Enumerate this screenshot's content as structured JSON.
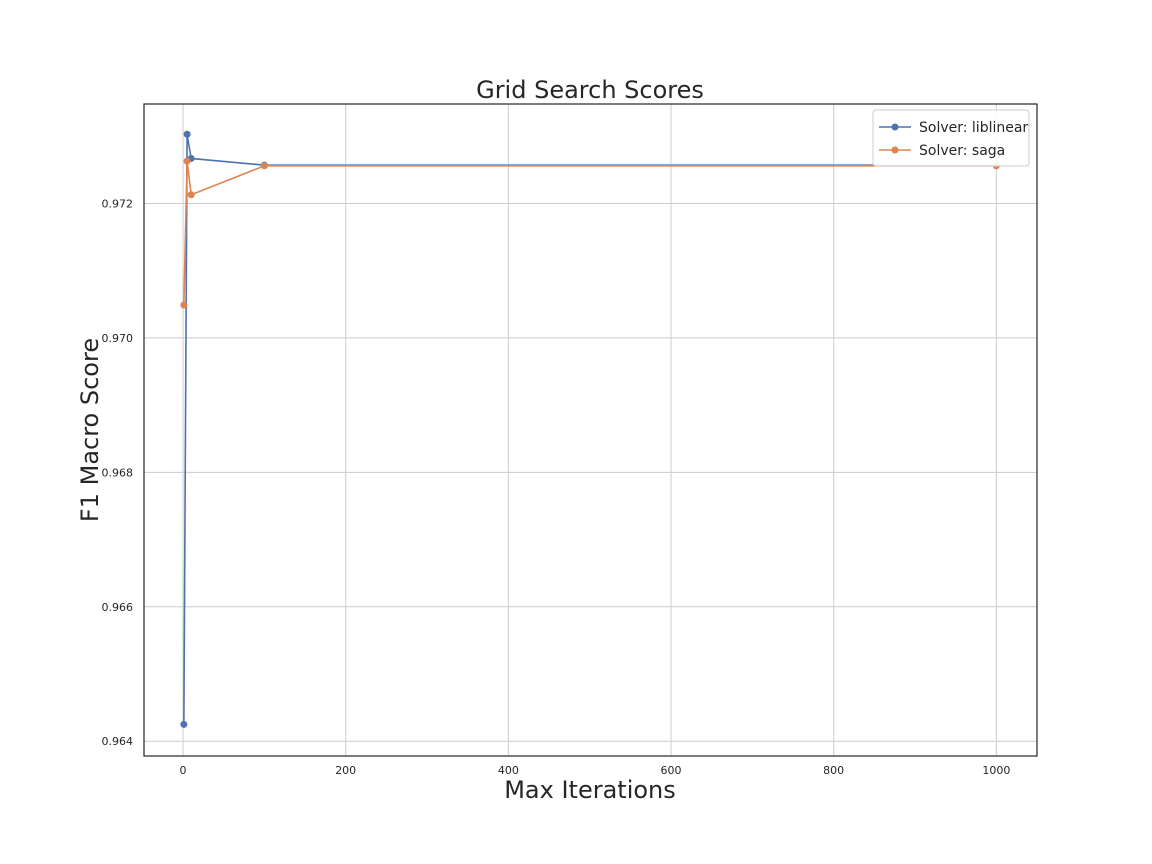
{
  "chart_data": {
    "type": "line",
    "title": "Grid Search Scores",
    "xlabel": "Max Iterations",
    "ylabel": "F1 Macro Score",
    "xlim": [
      -48,
      1050
    ],
    "ylim": [
      0.96378,
      0.97348
    ],
    "xticks": [
      0,
      200,
      400,
      600,
      800,
      1000
    ],
    "yticks": [
      0.964,
      0.966,
      0.968,
      0.97,
      0.972
    ],
    "ytick_labels": [
      "0.964",
      "0.966",
      "0.968",
      "0.970",
      "0.972"
    ],
    "grid": true,
    "legend_position": "top-right",
    "series": [
      {
        "name": "Solver: liblinear",
        "color": "#4c72b0",
        "points": [
          [
            1,
            0.96425
          ],
          [
            5,
            0.97303
          ],
          [
            10,
            0.97267
          ],
          [
            100,
            0.97257
          ],
          [
            1000,
            0.97257
          ]
        ]
      },
      {
        "name": "Solver: saga",
        "color": "#dd8452",
        "points": [
          [
            1,
            0.97049
          ],
          [
            5,
            0.97263
          ],
          [
            10,
            0.97213
          ],
          [
            100,
            0.97256
          ],
          [
            1000,
            0.97256
          ]
        ]
      }
    ]
  }
}
